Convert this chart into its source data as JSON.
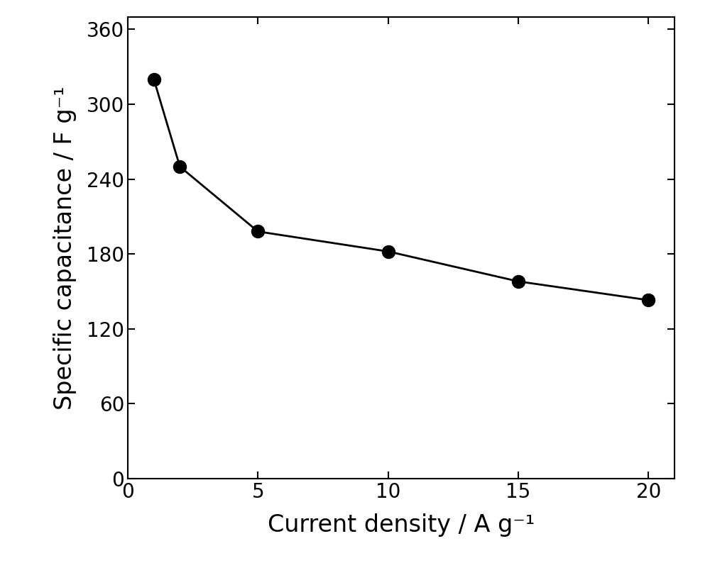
{
  "x": [
    1,
    2,
    5,
    10,
    15,
    20
  ],
  "y": [
    320,
    250,
    198,
    182,
    158,
    143
  ],
  "xlabel": "Current density / A g⁻¹",
  "ylabel": "Specific capacitance / F g⁻¹",
  "xlim": [
    0,
    21
  ],
  "ylim": [
    0,
    370
  ],
  "xticks": [
    0,
    5,
    10,
    15,
    20
  ],
  "yticks": [
    0,
    60,
    120,
    180,
    240,
    300,
    360
  ],
  "line_color": "#000000",
  "marker_color": "#000000",
  "marker_size": 13,
  "line_width": 2.0,
  "xlabel_fontsize": 24,
  "ylabel_fontsize": 24,
  "tick_fontsize": 20,
  "background_color": "#ffffff",
  "plot_bg_color": "#ffffff"
}
